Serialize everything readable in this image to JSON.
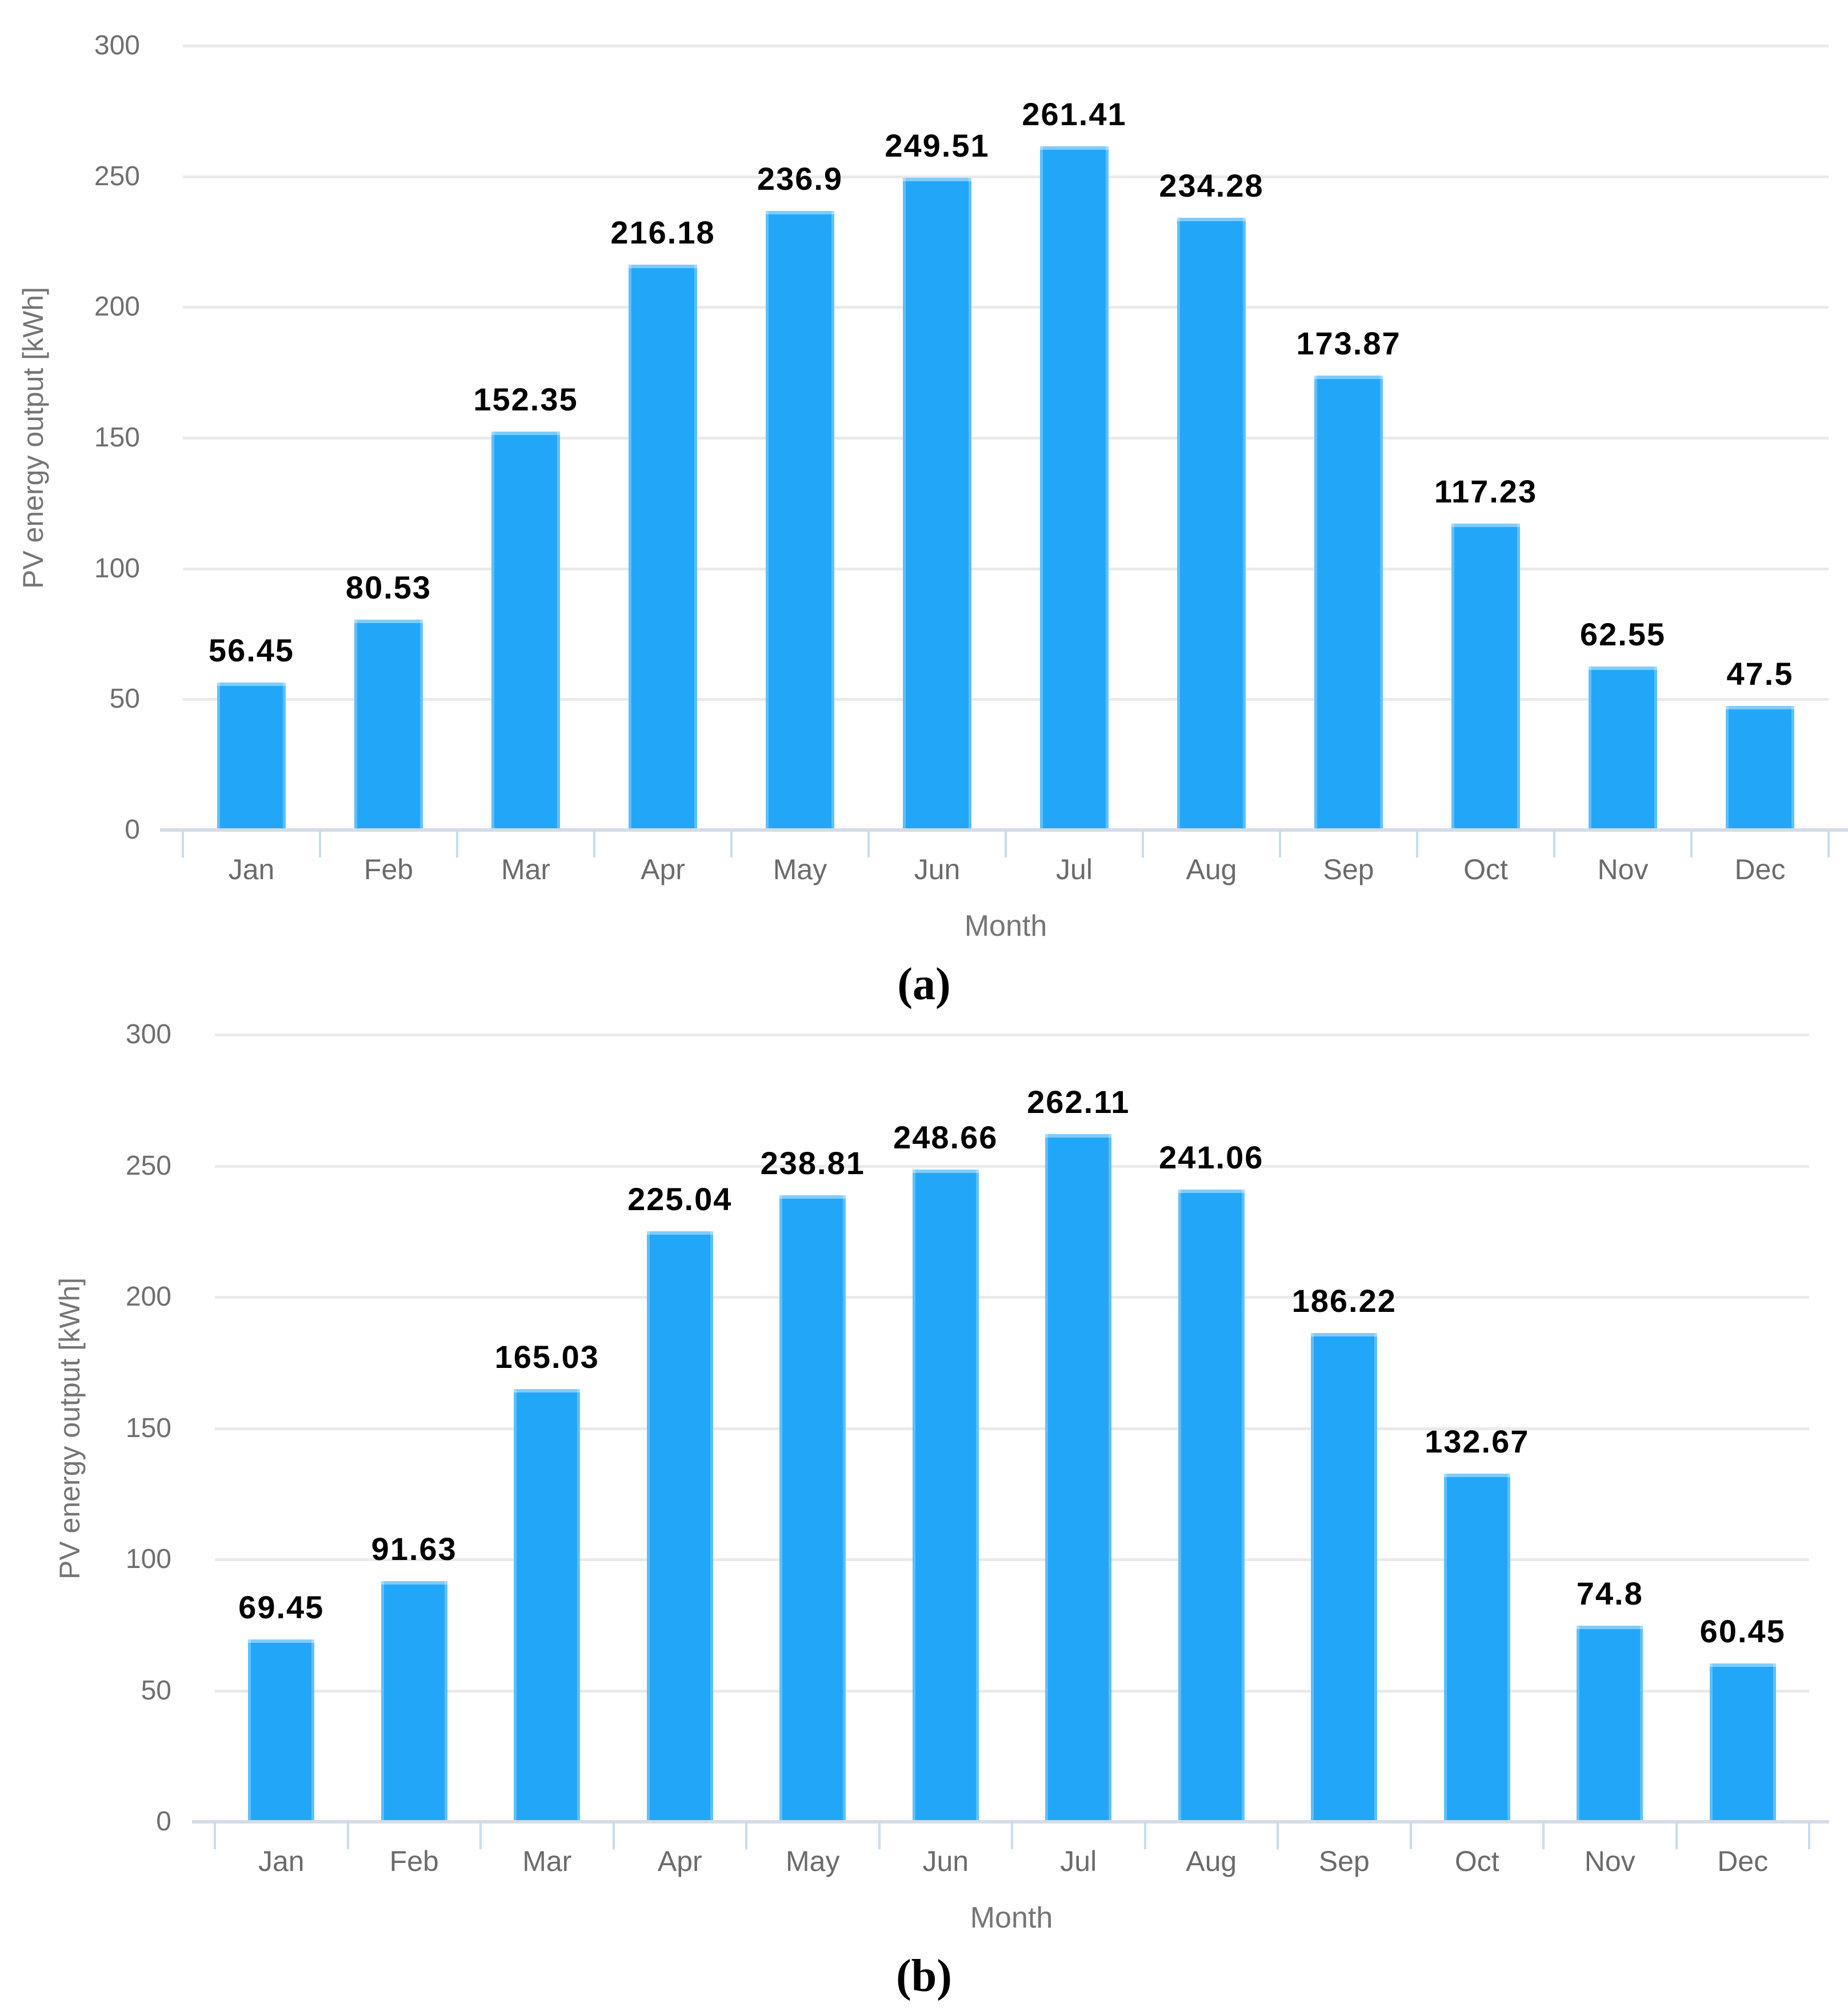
{
  "figure": {
    "background": "#ffffff"
  },
  "chart_data": [
    {
      "id": "a",
      "type": "bar",
      "caption": "(a)",
      "xlabel": "Month",
      "ylabel": "PV energy output [kWh]",
      "categories": [
        "Jan",
        "Feb",
        "Mar",
        "Apr",
        "May",
        "Jun",
        "Jul",
        "Aug",
        "Sep",
        "Oct",
        "Nov",
        "Dec"
      ],
      "values": [
        56.45,
        80.53,
        152.35,
        216.18,
        236.9,
        249.51,
        261.41,
        234.28,
        173.87,
        117.23,
        62.55,
        47.5
      ],
      "data_labels": [
        "56.45",
        "80.53",
        "152.35",
        "216.18",
        "236.9",
        "249.51",
        "261.41",
        "234.28",
        "173.87",
        "117.23",
        "62.55",
        "47.5"
      ],
      "y_ticks": [
        0,
        50,
        100,
        150,
        200,
        250,
        300
      ],
      "ylim": [
        0,
        300
      ],
      "grid": true,
      "legend": "none"
    },
    {
      "id": "b",
      "type": "bar",
      "caption": "(b)",
      "xlabel": "Month",
      "ylabel": "PV energy output [kWh]",
      "categories": [
        "Jan",
        "Feb",
        "Mar",
        "Apr",
        "May",
        "Jun",
        "Jul",
        "Aug",
        "Sep",
        "Oct",
        "Nov",
        "Dec"
      ],
      "values": [
        69.45,
        91.63,
        165.03,
        225.04,
        238.81,
        248.66,
        262.11,
        241.06,
        186.22,
        132.67,
        74.8,
        60.45
      ],
      "data_labels": [
        "69.45",
        "91.63",
        "165.03",
        "225.04",
        "238.81",
        "248.66",
        "262.11",
        "241.06",
        "186.22",
        "132.67",
        "74.8",
        "60.45"
      ],
      "y_ticks": [
        0,
        50,
        100,
        150,
        200,
        250,
        300
      ],
      "ylim": [
        0,
        300
      ],
      "grid": true,
      "legend": "none"
    }
  ],
  "style": {
    "bar_color": "#22a7f8",
    "bar_edge_highlight": "#a9dcfd",
    "gridline_color": "#eaeaea",
    "axis_line_color": "#d4dce6",
    "tick_mark_color": "#c9dbee",
    "y_tick_label_color": "#6f6f6f",
    "x_tick_label_color": "#6b6b6b",
    "axis_title_color": "#757575",
    "data_label_color": "#000000",
    "caption_color": "#000000"
  }
}
